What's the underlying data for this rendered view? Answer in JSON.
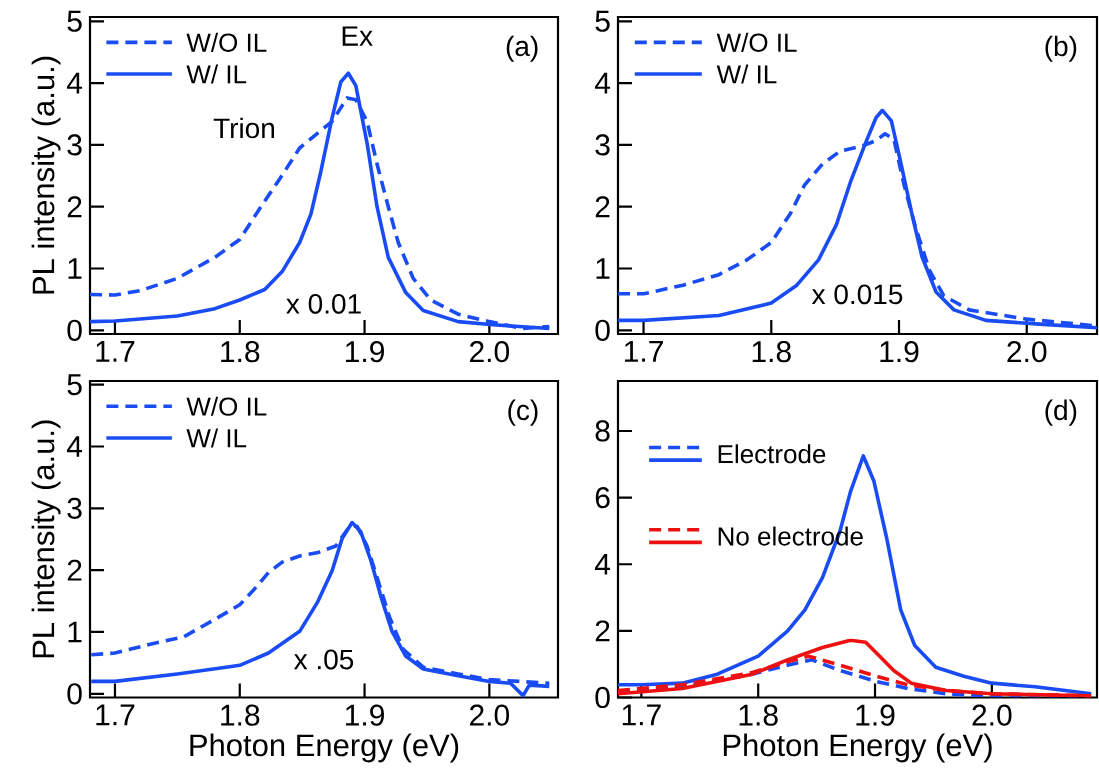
{
  "chart_data": [
    {
      "type": "line",
      "title": "(a)",
      "ylabel": "PL intensity (a.u.)",
      "xlim": [
        1.68,
        2.055
      ],
      "ylim": [
        -0.06,
        5.07
      ],
      "xticks": [
        {
          "value": 1.7,
          "label": "1.7"
        },
        {
          "value": 1.8,
          "label": "1.8"
        },
        {
          "value": 1.9,
          "label": "1.9"
        },
        {
          "value": 2.0,
          "label": "2.0"
        }
      ],
      "yticks": [
        0,
        1,
        2,
        3,
        4,
        5
      ],
      "legend": "top left",
      "annotations": [
        "Ex",
        "Trion",
        "x 0.01"
      ],
      "series": [
        {
          "name": "W/O IL",
          "color": "#1a4cf5",
          "line_style": "dashed",
          "x": [
            1.68,
            1.7,
            1.72,
            1.75,
            1.78,
            1.8,
            1.817,
            1.834,
            1.848,
            1.863,
            1.874,
            1.886,
            1.893,
            1.902,
            1.91,
            1.919,
            1.927,
            1.939,
            1.953,
            1.975,
            2.0,
            2.026,
            2.048
          ],
          "values": [
            0.58,
            0.57,
            0.64,
            0.84,
            1.18,
            1.47,
            2.0,
            2.51,
            2.95,
            3.2,
            3.38,
            3.76,
            3.73,
            3.38,
            2.69,
            2.0,
            1.42,
            0.84,
            0.49,
            0.26,
            0.14,
            0.03,
            0.06
          ]
        },
        {
          "name": "W/ IL",
          "color": "#1a4cf5",
          "line_style": "solid",
          "x": [
            1.68,
            1.7,
            1.75,
            1.78,
            1.8,
            1.82,
            1.834,
            1.848,
            1.857,
            1.865,
            1.874,
            1.881,
            1.887,
            1.893,
            1.902,
            1.91,
            1.919,
            1.933,
            1.947,
            1.975,
            2.003,
            2.048
          ],
          "values": [
            0.14,
            0.15,
            0.23,
            0.35,
            0.49,
            0.66,
            0.95,
            1.42,
            1.88,
            2.57,
            3.44,
            4.02,
            4.16,
            3.96,
            3.03,
            2.0,
            1.18,
            0.61,
            0.32,
            0.14,
            0.09,
            0.03
          ]
        }
      ]
    },
    {
      "type": "line",
      "title": "(b)",
      "xlim": [
        1.68,
        2.055
      ],
      "ylim": [
        -0.06,
        5.07
      ],
      "xticks": [
        {
          "value": 1.7,
          "label": "1.7"
        },
        {
          "value": 1.8,
          "label": "1.8"
        },
        {
          "value": 1.9,
          "label": "1.9"
        },
        {
          "value": 2.0,
          "label": "2.0"
        }
      ],
      "yticks": [
        0,
        1,
        2,
        3,
        4,
        5
      ],
      "legend": "top left",
      "annotations": [
        "x 0.015"
      ],
      "series": [
        {
          "name": "W/O IL",
          "color": "#1a4cf5",
          "line_style": "dashed",
          "x": [
            1.68,
            1.7,
            1.731,
            1.759,
            1.781,
            1.8,
            1.815,
            1.826,
            1.84,
            1.854,
            1.871,
            1.882,
            1.889,
            1.896,
            1.904,
            1.913,
            1.924,
            1.935,
            1.955,
            2.0,
            2.055
          ],
          "values": [
            0.59,
            0.59,
            0.73,
            0.9,
            1.14,
            1.42,
            1.89,
            2.35,
            2.69,
            2.9,
            2.98,
            3.07,
            3.18,
            3.09,
            2.35,
            1.66,
            0.96,
            0.56,
            0.33,
            0.18,
            0.07
          ]
        },
        {
          "name": "W/ IL",
          "color": "#1a4cf5",
          "line_style": "solid",
          "x": [
            1.68,
            1.7,
            1.759,
            1.8,
            1.82,
            1.837,
            1.851,
            1.862,
            1.874,
            1.882,
            1.887,
            1.894,
            1.901,
            1.91,
            1.918,
            1.929,
            1.943,
            1.968,
            2.01,
            2.055
          ],
          "values": [
            0.16,
            0.16,
            0.24,
            0.44,
            0.73,
            1.14,
            1.71,
            2.4,
            3.04,
            3.44,
            3.56,
            3.39,
            2.75,
            1.89,
            1.19,
            0.62,
            0.33,
            0.16,
            0.1,
            0.04
          ]
        }
      ]
    },
    {
      "type": "line",
      "title": "(c)",
      "xlabel": "Photon Energy (eV)",
      "ylabel": "PL intensity (a.u.)",
      "xlim": [
        1.68,
        2.055
      ],
      "ylim": [
        -0.06,
        5.06
      ],
      "xticks": [
        {
          "value": 1.7,
          "label": "1.7"
        },
        {
          "value": 1.8,
          "label": "1.8"
        },
        {
          "value": 1.9,
          "label": "1.9"
        },
        {
          "value": 2.0,
          "label": "2.0"
        }
      ],
      "yticks": [
        0,
        1,
        2,
        3,
        4,
        5
      ],
      "legend": "top left",
      "annotations": [
        "x .05"
      ],
      "series": [
        {
          "name": "W/O IL",
          "color": "#1a4cf5",
          "line_style": "dashed",
          "x": [
            1.681,
            1.7,
            1.73,
            1.755,
            1.778,
            1.8,
            1.812,
            1.823,
            1.834,
            1.848,
            1.862,
            1.877,
            1.888,
            1.894,
            1.902,
            1.911,
            1.92,
            1.931,
            1.947,
            1.975,
            2.0,
            2.048
          ],
          "values": [
            0.63,
            0.66,
            0.81,
            0.92,
            1.18,
            1.44,
            1.7,
            1.96,
            2.13,
            2.23,
            2.28,
            2.39,
            2.71,
            2.71,
            2.39,
            1.82,
            1.24,
            0.72,
            0.43,
            0.32,
            0.23,
            0.17
          ]
        },
        {
          "name": "W/ IL",
          "color": "#1a4cf5",
          "line_style": "solid",
          "x": [
            1.681,
            1.7,
            1.75,
            1.789,
            1.8,
            1.823,
            1.848,
            1.862,
            1.874,
            1.882,
            1.89,
            1.897,
            1.905,
            1.913,
            1.922,
            1.933,
            1.947,
            1.975,
            2.0,
            2.017,
            2.027,
            2.032,
            2.048
          ],
          "values": [
            0.2,
            0.2,
            0.32,
            0.43,
            0.46,
            0.66,
            1.01,
            1.47,
            1.99,
            2.51,
            2.77,
            2.62,
            2.16,
            1.58,
            1.01,
            0.61,
            0.4,
            0.29,
            0.2,
            0.17,
            -0.03,
            0.14,
            0.12
          ]
        }
      ]
    },
    {
      "type": "line",
      "title": "(d)",
      "xlabel": "Photon Energy (eV)",
      "xlim": [
        1.68,
        2.09
      ],
      "ylim": [
        0,
        9.5
      ],
      "xticks": [
        {
          "value": 1.7,
          "label": "1.7"
        },
        {
          "value": 1.8,
          "label": "1.8"
        },
        {
          "value": 1.9,
          "label": "1.9"
        },
        {
          "value": 2.0,
          "label": "2.0"
        }
      ],
      "yticks": [
        0,
        2,
        4,
        6,
        8
      ],
      "legend": "top left",
      "series": [
        {
          "color": "#1a4cf5",
          "line_style": "dashed",
          "x": [
            1.68,
            1.735,
            1.795,
            1.825,
            1.846,
            1.87,
            1.901,
            1.928,
            1.961,
            2.0,
            2.085
          ],
          "values": [
            0.16,
            0.32,
            0.7,
            0.97,
            1.13,
            0.81,
            0.48,
            0.27,
            0.11,
            0.05,
            0.05
          ]
        },
        {
          "name": "Electrode",
          "color": "#1a4cf5",
          "line_style": "solid",
          "x": [
            1.68,
            1.7,
            1.735,
            1.765,
            1.8,
            1.825,
            1.84,
            1.855,
            1.87,
            1.879,
            1.89,
            1.899,
            1.91,
            1.922,
            1.934,
            1.952,
            1.976,
            2.0,
            2.037,
            2.085
          ],
          "values": [
            0.38,
            0.38,
            0.43,
            0.7,
            1.24,
            1.99,
            2.63,
            3.6,
            4.99,
            6.18,
            7.25,
            6.5,
            4.78,
            2.63,
            1.56,
            0.91,
            0.64,
            0.43,
            0.32,
            0.11
          ]
        },
        {
          "color": "#ee1111",
          "line_style": "dashed",
          "x": [
            1.68,
            1.735,
            1.795,
            1.825,
            1.843,
            1.87,
            1.901,
            1.928,
            1.961,
            2.0,
            2.085
          ],
          "values": [
            0.21,
            0.38,
            0.75,
            1.07,
            1.24,
            0.97,
            0.64,
            0.38,
            0.21,
            0.11,
            0.05
          ]
        },
        {
          "name": "No electrode",
          "color": "#ee1111",
          "line_style": "solid",
          "x": [
            1.68,
            1.735,
            1.795,
            1.825,
            1.855,
            1.879,
            1.892,
            1.904,
            1.916,
            1.931,
            1.961,
            2.0,
            2.085
          ],
          "values": [
            0.11,
            0.27,
            0.7,
            1.13,
            1.5,
            1.72,
            1.66,
            1.24,
            0.81,
            0.43,
            0.21,
            0.11,
            0.05
          ]
        }
      ]
    }
  ]
}
